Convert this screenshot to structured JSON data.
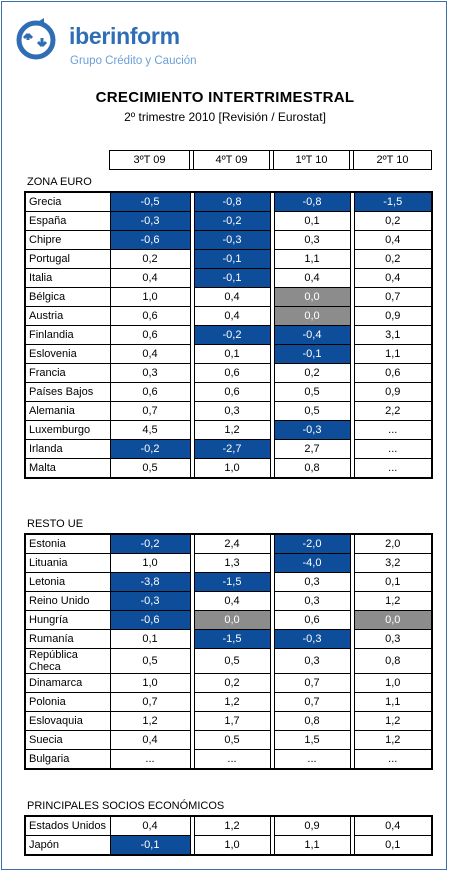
{
  "brand": {
    "name": "iberinform",
    "tagline": "Grupo Crédito y Caución",
    "color": "#2f6db5"
  },
  "title": "CRECIMIENTO INTERTRIMESTRAL",
  "subtitle": "2º trimestre 2010 [Revisión / Eurostat]",
  "columns": [
    "3ºT 09",
    "4ºT 09",
    "1ºT 10",
    "2ºT 10"
  ],
  "colors": {
    "negative": "#0e4d9a",
    "zero": "#8c8c8c"
  },
  "sections": [
    {
      "title": "ZONA EURO",
      "rows": [
        {
          "name": "Grecia",
          "values": [
            "-0,5",
            "-0,8",
            "-0,8",
            "-1,5"
          ]
        },
        {
          "name": "España",
          "values": [
            "-0,3",
            "-0,2",
            "0,1",
            "0,2"
          ]
        },
        {
          "name": "Chipre",
          "values": [
            "-0,6",
            "-0,3",
            "0,3",
            "0,4"
          ]
        },
        {
          "name": "Portugal",
          "values": [
            "0,2",
            "-0,1",
            "1,1",
            "0,2"
          ]
        },
        {
          "name": "Italia",
          "values": [
            "0,4",
            "-0,1",
            "0,4",
            "0,4"
          ]
        },
        {
          "name": "Bélgica",
          "values": [
            "1,0",
            "0,4",
            "0,0",
            "0,7"
          ]
        },
        {
          "name": "Austria",
          "values": [
            "0,6",
            "0,4",
            "0,0",
            "0,9"
          ]
        },
        {
          "name": "Finlandia",
          "values": [
            "0,6",
            "-0,2",
            "-0,4",
            "3,1"
          ]
        },
        {
          "name": "Eslovenia",
          "values": [
            "0,4",
            "0,1",
            "-0,1",
            "1,1"
          ]
        },
        {
          "name": "Francia",
          "values": [
            "0,3",
            "0,6",
            "0,2",
            "0,6"
          ]
        },
        {
          "name": "Países Bajos",
          "values": [
            "0,6",
            "0,6",
            "0,5",
            "0,9"
          ]
        },
        {
          "name": "Alemania",
          "values": [
            "0,7",
            "0,3",
            "0,5",
            "2,2"
          ]
        },
        {
          "name": "Luxemburgo",
          "values": [
            "4,5",
            "1,2",
            "-0,3",
            "..."
          ]
        },
        {
          "name": "Irlanda",
          "values": [
            "-0,2",
            "-2,7",
            "2,7",
            "..."
          ]
        },
        {
          "name": "Malta",
          "values": [
            "0,5",
            "1,0",
            "0,8",
            "..."
          ]
        }
      ]
    },
    {
      "title": "RESTO UE",
      "rows": [
        {
          "name": "Estonia",
          "values": [
            "-0,2",
            "2,4",
            "-2,0",
            "2,0"
          ]
        },
        {
          "name": "Lituania",
          "values": [
            "1,0",
            "1,3",
            "-4,0",
            "3,2"
          ]
        },
        {
          "name": "Letonia",
          "values": [
            "-3,8",
            "-1,5",
            "0,3",
            "0,1"
          ]
        },
        {
          "name": "Reino Unido",
          "values": [
            "-0,3",
            "0,4",
            "0,3",
            "1,2"
          ]
        },
        {
          "name": "Hungría",
          "values": [
            "-0,6",
            "0,0",
            "0,6",
            "0,0"
          ]
        },
        {
          "name": "Rumanía",
          "values": [
            "0,1",
            "-1,5",
            "-0,3",
            "0,3"
          ]
        },
        {
          "name": "República Checa",
          "values": [
            "0,5",
            "0,5",
            "0,3",
            "0,8"
          ]
        },
        {
          "name": "Dinamarca",
          "values": [
            "1,0",
            "0,2",
            "0,7",
            "1,0"
          ]
        },
        {
          "name": "Polonia",
          "values": [
            "0,7",
            "1,2",
            "0,7",
            "1,1"
          ]
        },
        {
          "name": "Eslovaquia",
          "values": [
            "1,2",
            "1,7",
            "0,8",
            "1,2"
          ]
        },
        {
          "name": "Suecia",
          "values": [
            "0,4",
            "0,5",
            "1,5",
            "1,2"
          ]
        },
        {
          "name": "Bulgaria",
          "values": [
            "...",
            "...",
            "...",
            "..."
          ]
        }
      ]
    },
    {
      "title": "PRINCIPALES SOCIOS ECONÓMICOS",
      "rows": [
        {
          "name": "Estados Unidos",
          "values": [
            "0,4",
            "1,2",
            "0,9",
            "0,4"
          ]
        },
        {
          "name": "Japón",
          "values": [
            "-0,1",
            "1,0",
            "1,1",
            "0,1"
          ]
        }
      ]
    }
  ]
}
